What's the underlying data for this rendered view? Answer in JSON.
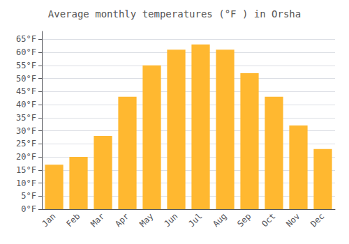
{
  "chart_data": {
    "type": "bar",
    "title": "Average monthly temperatures (°F ) in Orsha",
    "categories": [
      "Jan",
      "Feb",
      "Mar",
      "Apr",
      "May",
      "Jun",
      "Jul",
      "Aug",
      "Sep",
      "Oct",
      "Nov",
      "Dec"
    ],
    "values": [
      17,
      20,
      28,
      43,
      55,
      61,
      63,
      61,
      52,
      43,
      32,
      23
    ],
    "color": "#FFB830",
    "ylim": [
      0,
      68
    ],
    "yticks": [
      {
        "value": 0,
        "label": "0°F"
      },
      {
        "value": 5,
        "label": "5°F"
      },
      {
        "value": 10,
        "label": "10°F"
      },
      {
        "value": 15,
        "label": "15°F"
      },
      {
        "value": 20,
        "label": "20°F"
      },
      {
        "value": 25,
        "label": "25°F"
      },
      {
        "value": 30,
        "label": "30°F"
      },
      {
        "value": 35,
        "label": "35°F"
      },
      {
        "value": 40,
        "label": "40°F"
      },
      {
        "value": 45,
        "label": "45°F"
      },
      {
        "value": 50,
        "label": "50°F"
      },
      {
        "value": 55,
        "label": "55°F"
      },
      {
        "value": 60,
        "label": "60°F"
      },
      {
        "value": 65,
        "label": "65°F"
      }
    ],
    "grid": true
  }
}
